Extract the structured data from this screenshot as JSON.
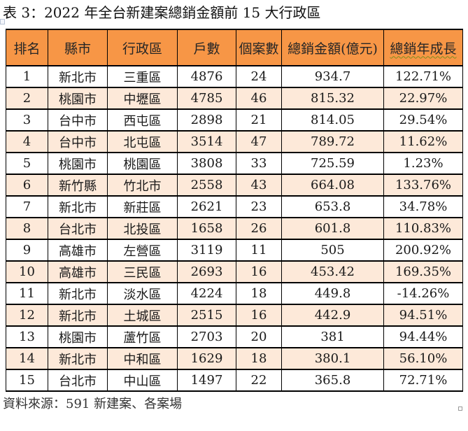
{
  "title": "表 3：2022 年全台新建案總銷金額前 15 大行政區",
  "source": "資料來源：591 新建案、各案場",
  "colors": {
    "header_bg": "#F79646",
    "alt_row_bg": "#FDE9D9",
    "border": "#000000",
    "squiggle": "#7c8d1e"
  },
  "table": {
    "columns": [
      "排名",
      "縣市",
      "行政區",
      "戶數",
      "個案數",
      "總銷金額(億元)",
      "總銷年成長"
    ],
    "column_keys": [
      "rank",
      "county",
      "district",
      "households",
      "case-count",
      "total-sales",
      "yoy-growth"
    ],
    "rows": [
      [
        "1",
        "新北市",
        "三重區",
        "4876",
        "24",
        "934.7",
        "122.71%"
      ],
      [
        "2",
        "桃園市",
        "中壢區",
        "4785",
        "46",
        "815.32",
        "22.97%"
      ],
      [
        "3",
        "台中市",
        "西屯區",
        "2898",
        "21",
        "814.05",
        "29.54%"
      ],
      [
        "4",
        "台中市",
        "北屯區",
        "3514",
        "47",
        "789.72",
        "11.62%"
      ],
      [
        "5",
        "桃園市",
        "桃園區",
        "3808",
        "33",
        "725.59",
        "1.23%"
      ],
      [
        "6",
        "新竹縣",
        "竹北市",
        "2558",
        "43",
        "664.08",
        "133.76%"
      ],
      [
        "7",
        "新北市",
        "新莊區",
        "2621",
        "23",
        "653.8",
        "34.78%"
      ],
      [
        "8",
        "台北市",
        "北投區",
        "1658",
        "26",
        "601.8",
        "110.83%"
      ],
      [
        "9",
        "高雄市",
        "左營區",
        "3119",
        "11",
        "505",
        "200.92%"
      ],
      [
        "10",
        "高雄市",
        "三民區",
        "2693",
        "16",
        "453.42",
        "169.35%"
      ],
      [
        "11",
        "新北市",
        "淡水區",
        "4224",
        "18",
        "449.8",
        "-14.26%"
      ],
      [
        "12",
        "新北市",
        "土城區",
        "2515",
        "16",
        "442.9",
        "94.51%"
      ],
      [
        "13",
        "桃園市",
        "蘆竹區",
        "2703",
        "20",
        "381",
        "94.44%"
      ],
      [
        "14",
        "新北市",
        "中和區",
        "1629",
        "18",
        "380.1",
        "56.10%"
      ],
      [
        "15",
        "台北市",
        "中山區",
        "1497",
        "22",
        "365.8",
        "72.71%"
      ]
    ]
  }
}
